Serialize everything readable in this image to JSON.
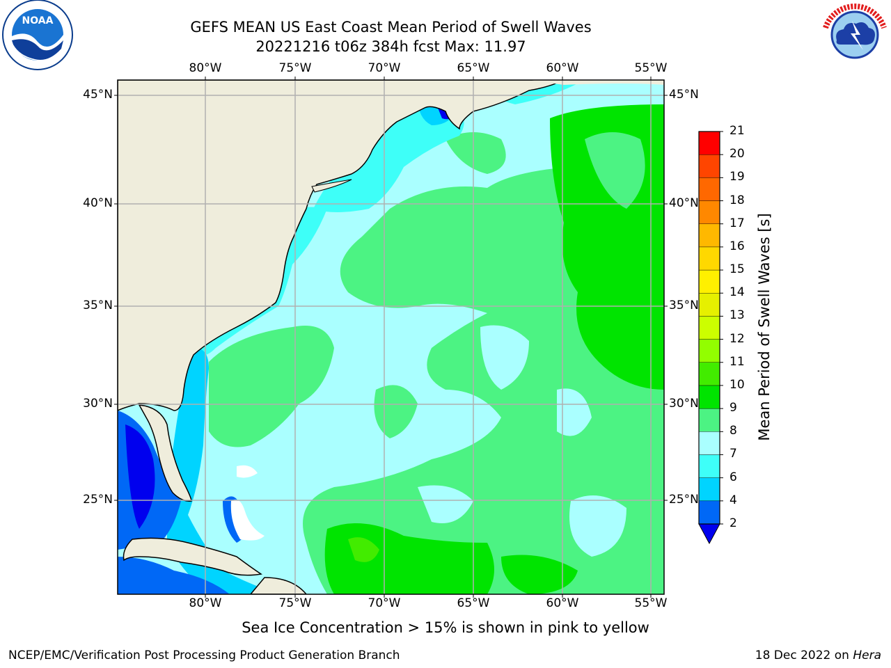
{
  "header": {
    "title_line1": "GEFS MEAN US East Coast Mean Period of Swell Waves",
    "title_line2": "20221216 t06z 384h fcst   Max: 11.97"
  },
  "logos": {
    "left": "noaa-logo",
    "right": "national-weather-service-logo"
  },
  "map": {
    "lon_labels": [
      "80°W",
      "75°W",
      "70°W",
      "65°W",
      "60°W",
      "55°W"
    ],
    "lat_labels": [
      "45°N",
      "40°N",
      "35°N",
      "30°N",
      "25°N"
    ],
    "colors": {
      "land": "#efeddc",
      "ocean_default": "#aaffff",
      "grid": "#b0b0b0"
    }
  },
  "colorbar": {
    "label": "Mean Period of Swell Waves [s]",
    "ticks": [
      "2",
      "4",
      "6",
      "7",
      "8",
      "9",
      "10",
      "11",
      "12",
      "13",
      "14",
      "15",
      "16",
      "17",
      "18",
      "19",
      "20",
      "21"
    ],
    "colors": [
      "#0068f6",
      "#00d4ff",
      "#3efff8",
      "#aaffff",
      "#4cf383",
      "#00e400",
      "#42ec00",
      "#92fe00",
      "#ccfe00",
      "#e6f000",
      "#fff000",
      "#ffd800",
      "#ffb800",
      "#ff8800",
      "#ff6800",
      "#ff4500",
      "#ff0000"
    ],
    "extend_color": "#0000ee"
  },
  "footer": {
    "sea_ice_note": "Sea Ice Concentration > 15% is shown in pink to yellow",
    "left": "NCEP/EMC/Verification Post Processing Product Generation Branch",
    "right_date": "18 Dec 2022 on ",
    "right_host": "Hera"
  }
}
